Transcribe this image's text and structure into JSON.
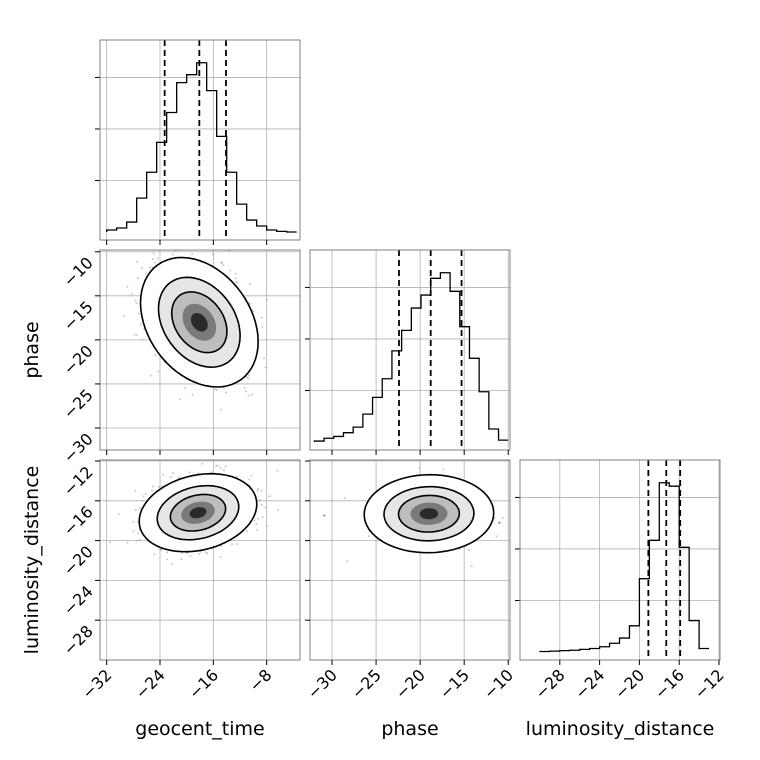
{
  "figure": {
    "ink_color": "#000000",
    "grid_color": "#b0b0b0",
    "frame_color": "#808080",
    "point_color": "#9a9a9a"
  },
  "chart_data": {
    "type": "corner",
    "parameters": [
      "geocent_time",
      "phase",
      "luminosity_distance"
    ],
    "grid": true,
    "ranges": {
      "geocent_time": [
        -33,
        -3
      ],
      "phase": [
        -32.5,
        -9.8
      ],
      "luminosity_distance": [
        -32,
        -11.9
      ]
    },
    "ticks": {
      "geocent_time": [
        "−32",
        "−24",
        "−16",
        "−8"
      ],
      "phase_x": [
        "−30",
        "−25",
        "−20",
        "−15",
        "−10"
      ],
      "phase_y": [
        "−10",
        "−15",
        "−20",
        "−25",
        "−30"
      ],
      "luminosity_distance_x": [
        "−28",
        "−24",
        "−20",
        "−16",
        "−12"
      ],
      "luminosity_distance_y": [
        "−12",
        "−16",
        "−20",
        "−24",
        "−28"
      ]
    },
    "marginals": {
      "geocent_time": {
        "bin_edges": [
          -32,
          -30.5,
          -29,
          -27.5,
          -26,
          -24.5,
          -23,
          -21.5,
          -20,
          -18.5,
          -17,
          -15.5,
          -14,
          -12.5,
          -11,
          -9.5,
          -8,
          -6.5,
          -5,
          -3.5
        ],
        "counts": [
          1,
          2,
          5,
          17,
          30,
          45,
          60,
          75,
          79,
          85,
          71,
          48,
          30,
          14,
          6,
          3,
          1,
          0.3,
          0
        ],
        "quantiles": [
          -23.3,
          -18.1,
          -14.1
        ]
      },
      "phase": {
        "bin_edges": [
          -32,
          -30.9,
          -29.8,
          -28.7,
          -27.6,
          -26.5,
          -25.4,
          -24.3,
          -23.2,
          -22.1,
          -21,
          -19.9,
          -18.8,
          -17.7,
          -16.6,
          -15.5,
          -14.4,
          -13.3,
          -12.2,
          -11.1,
          -10
        ],
        "counts": [
          0.5,
          2,
          3,
          5,
          8,
          15,
          24,
          34,
          49,
          60,
          72,
          79,
          88,
          91,
          81,
          62,
          45,
          27,
          7,
          1
        ],
        "quantiles": [
          -22.4,
          -18.8,
          -15.3
        ]
      },
      "luminosity_distance": {
        "bin_edges": [
          -30,
          -29,
          -28,
          -27,
          -26,
          -25,
          -24,
          -23,
          -22,
          -21,
          -20,
          -19,
          -18,
          -17,
          -16,
          -15,
          -14,
          -13
        ],
        "counts": [
          0.3,
          0.5,
          0.8,
          1,
          1.5,
          2,
          3,
          5,
          8,
          15,
          42,
          64,
          97,
          95,
          60,
          18,
          2
        ],
        "quantiles": [
          -19.1,
          -17.3,
          -15.9
        ]
      }
    },
    "joint": {
      "phase_vs_geocent_time": {
        "mean": [
          -18.1,
          -18.0
        ],
        "sd": [
          3.6,
          3.0
        ],
        "rho": -0.3,
        "samples": 1500
      },
      "luminosity_distance_vs_geocent_time": {
        "mean": [
          -18.3,
          -17.2
        ],
        "sd": [
          3.6,
          1.6
        ],
        "rho": 0.22,
        "samples": 1500
      },
      "luminosity_distance_vs_phase": {
        "mean": [
          -19.0,
          -17.3
        ],
        "sd": [
          3.0,
          1.6
        ],
        "rho": 0.02,
        "samples": 1500
      }
    }
  }
}
